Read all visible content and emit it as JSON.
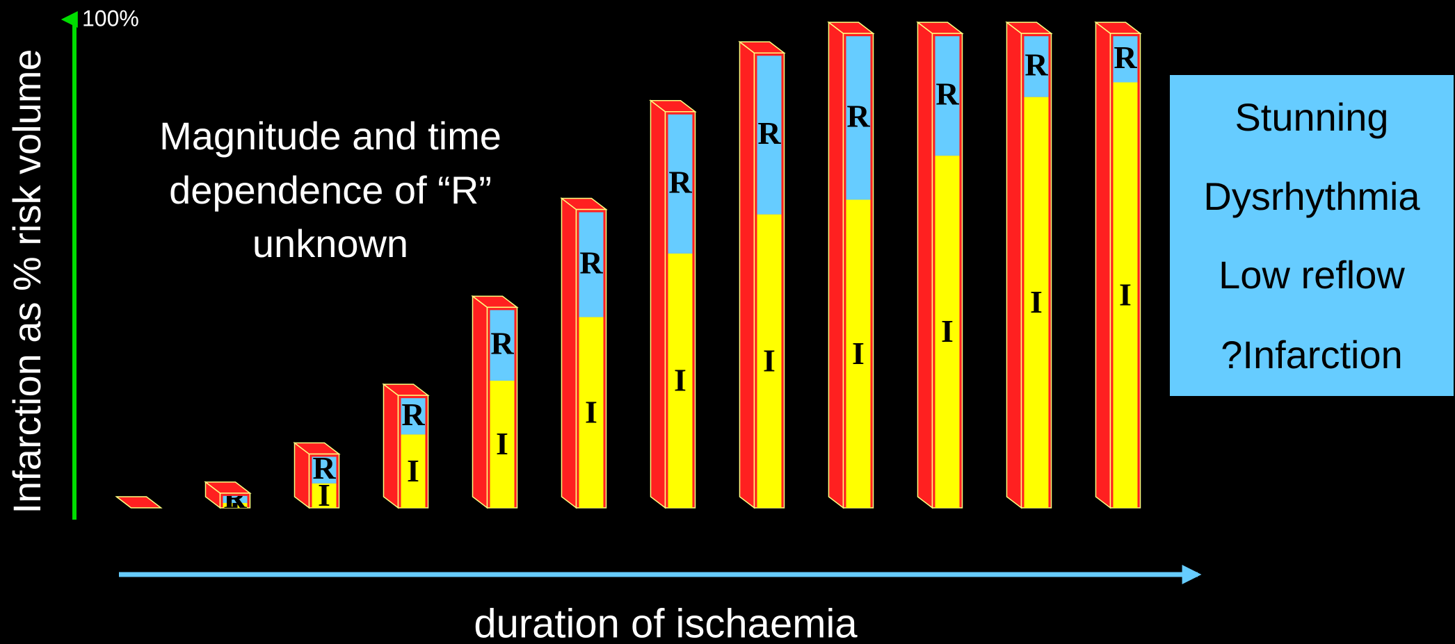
{
  "chart_data": {
    "type": "bar3d-stacked",
    "y_label": "Infarction as % risk volume",
    "x_label": "duration of ischaemia",
    "annotation": [
      "Magnitude and time",
      "dependence of “R”",
      "unknown"
    ],
    "side_box": [
      "Stunning",
      "Dysrhythmia",
      "Low reflow",
      "?Infarction"
    ],
    "categories": [
      null,
      null,
      null,
      null,
      null,
      null,
      null,
      null,
      null,
      null,
      null,
      null
    ],
    "series": [
      {
        "name": "I",
        "color": "#ffff00",
        "values": [
          0,
          1,
          5,
          15,
          26,
          39,
          52,
          60,
          63,
          72,
          84,
          87
        ]
      },
      {
        "name": "R",
        "color": "#66ccff",
        "values": [
          0,
          2,
          6,
          8,
          15,
          22,
          29,
          33,
          34,
          25,
          13,
          10
        ]
      }
    ],
    "frame_color": "#ff2020",
    "ylim": [
      0,
      100
    ],
    "yticks": [
      {
        "value": 100,
        "label": "100%"
      }
    ],
    "grid": false
  }
}
